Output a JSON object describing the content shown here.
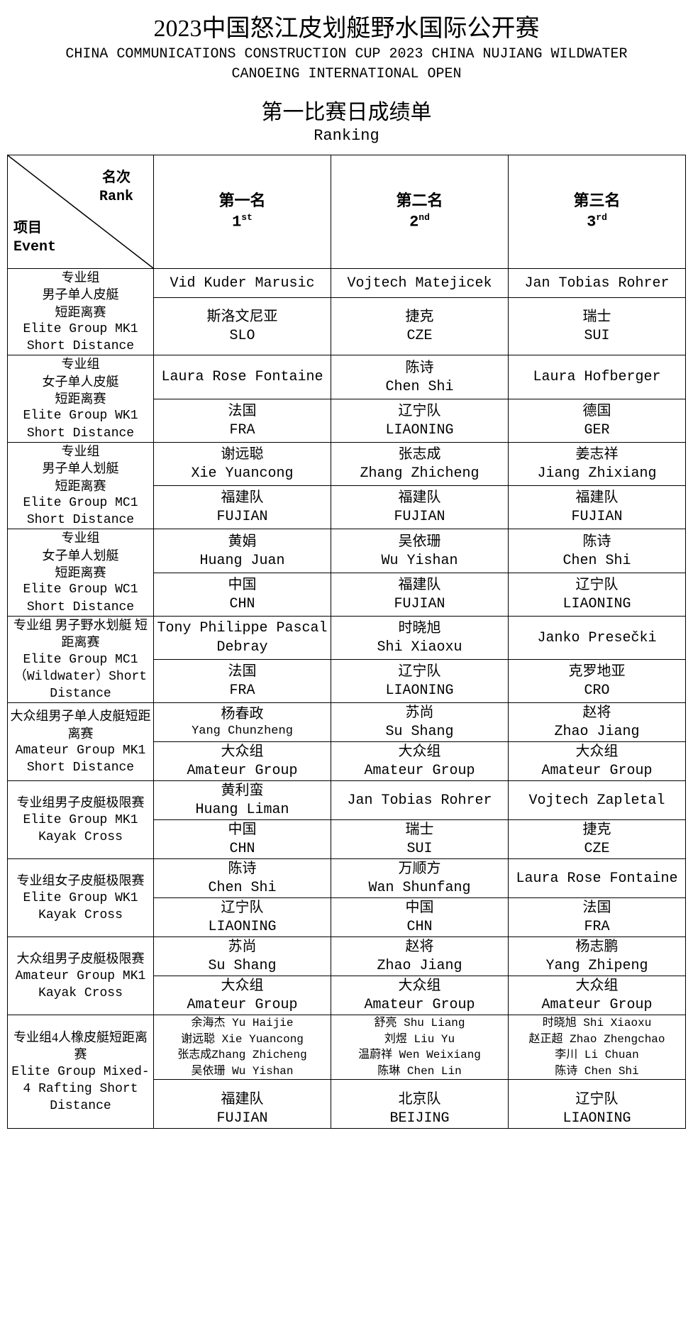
{
  "header": {
    "title_cn": "2023中国怒江皮划艇野水国际公开赛",
    "title_en_line1": "CHINA COMMUNICATIONS CONSTRUCTION CUP 2023 CHINA NUJIANG WILDWATER",
    "title_en_line2": "CANOEING INTERNATIONAL OPEN",
    "subtitle_cn": "第一比赛日成绩单",
    "subtitle_en": "Ranking"
  },
  "corner": {
    "rank_cn": "名次",
    "rank_en": "Rank",
    "event_cn": "项目",
    "event_en": "Event"
  },
  "columns": [
    {
      "cn": "第一名",
      "en_pre": "1",
      "en_suf": "st"
    },
    {
      "cn": "第二名",
      "en_pre": "2",
      "en_suf": "nd"
    },
    {
      "cn": "第三名",
      "en_pre": "3",
      "en_suf": "rd"
    }
  ],
  "rows": [
    {
      "event_cn": "专业组\n男子单人皮艇\n短距离赛",
      "event_en": "Elite Group MK1 Short Distance",
      "places": [
        {
          "name_cn": "",
          "name_en": "Vid  Kuder Marusic",
          "country_cn": "斯洛文尼亚",
          "country_en": "SLO"
        },
        {
          "name_cn": "",
          "name_en": "Vojtech Matejicek",
          "country_cn": "捷克",
          "country_en": "CZE"
        },
        {
          "name_cn": "",
          "name_en": "Jan Tobias Rohrer",
          "country_cn": "瑞士",
          "country_en": "SUI"
        }
      ]
    },
    {
      "event_cn": "专业组\n女子单人皮艇\n短距离赛",
      "event_en": "Elite Group WK1 Short Distance",
      "places": [
        {
          "name_cn": "",
          "name_en": "Laura Rose Fontaine",
          "country_cn": "法国",
          "country_en": "FRA"
        },
        {
          "name_cn": "陈诗",
          "name_en": "Chen Shi",
          "country_cn": "辽宁队",
          "country_en": "LIAONING"
        },
        {
          "name_cn": "",
          "name_en": "Laura Hofberger",
          "country_cn": "德国",
          "country_en": "GER"
        }
      ]
    },
    {
      "event_cn": "专业组\n男子单人划艇\n短距离赛",
      "event_en": "Elite Group MC1 Short Distance",
      "places": [
        {
          "name_cn": "谢远聪",
          "name_en": "Xie Yuancong",
          "country_cn": "福建队",
          "country_en": "FUJIAN"
        },
        {
          "name_cn": "张志成",
          "name_en": "Zhang Zhicheng",
          "country_cn": "福建队",
          "country_en": "FUJIAN"
        },
        {
          "name_cn": "姜志祥",
          "name_en": "Jiang Zhixiang",
          "country_cn": "福建队",
          "country_en": "FUJIAN"
        }
      ]
    },
    {
      "event_cn": "专业组\n女子单人划艇\n短距离赛",
      "event_en": "Elite Group WC1 Short Distance",
      "places": [
        {
          "name_cn": "黄娟",
          "name_en": "Huang Juan",
          "country_cn": "中国",
          "country_en": "CHN"
        },
        {
          "name_cn": "吴依珊",
          "name_en": "Wu Yishan",
          "country_cn": "福建队",
          "country_en": "FUJIAN"
        },
        {
          "name_cn": "陈诗",
          "name_en": "Chen Shi",
          "country_cn": "辽宁队",
          "country_en": "LIAONING"
        }
      ]
    },
    {
      "event_cn": "专业组 男子野水划艇 短距离赛",
      "event_en": "Elite Group MC1（Wildwater）Short Distance",
      "places": [
        {
          "name_cn": "",
          "name_en": "Tony Philippe Pascal Debray",
          "country_cn": "法国",
          "country_en": "FRA"
        },
        {
          "name_cn": "时晓旭",
          "name_en": "Shi Xiaoxu",
          "country_cn": "辽宁队",
          "country_en": "LIAONING"
        },
        {
          "name_cn": "",
          "name_en": "Janko Presečki",
          "country_cn": "克罗地亚",
          "country_en": "CRO"
        }
      ]
    },
    {
      "event_cn": "大众组男子单人皮艇短距离赛",
      "event_en": "Amateur Group MK1 Short Distance",
      "places": [
        {
          "name_cn": "杨春政",
          "name_en": "Yang Chunzheng",
          "country_cn": "大众组",
          "country_en": "Amateur Group",
          "small": true
        },
        {
          "name_cn": "苏尚",
          "name_en": "Su Shang",
          "country_cn": "大众组",
          "country_en": "Amateur Group"
        },
        {
          "name_cn": "赵将",
          "name_en": "Zhao Jiang",
          "country_cn": "大众组",
          "country_en": "Amateur Group"
        }
      ]
    },
    {
      "event_cn": "专业组男子皮艇极限赛",
      "event_en": "Elite Group MK1 Kayak Cross",
      "places": [
        {
          "name_cn": "黄利蛮",
          "name_en": "Huang Liman",
          "country_cn": "中国",
          "country_en": "CHN"
        },
        {
          "name_cn": "",
          "name_en": "Jan Tobias Rohrer",
          "country_cn": "瑞士",
          "country_en": "SUI"
        },
        {
          "name_cn": "",
          "name_en": "Vojtech Zapletal",
          "country_cn": "捷克",
          "country_en": "CZE"
        }
      ]
    },
    {
      "event_cn": "专业组女子皮艇极限赛",
      "event_en": "Elite Group WK1 Kayak Cross",
      "places": [
        {
          "name_cn": "陈诗",
          "name_en": "Chen Shi",
          "country_cn": "辽宁队",
          "country_en": "LIAONING"
        },
        {
          "name_cn": "万顺方",
          "name_en": "Wan Shunfang",
          "country_cn": "中国",
          "country_en": "CHN"
        },
        {
          "name_cn": "",
          "name_en": "Laura Rose Fontaine",
          "country_cn": "法国",
          "country_en": "FRA"
        }
      ]
    },
    {
      "event_cn": "大众组男子皮艇极限赛",
      "event_en": "Amateur Group MK1 Kayak Cross",
      "places": [
        {
          "name_cn": "苏尚",
          "name_en": "Su Shang",
          "country_cn": "大众组",
          "country_en": "Amateur Group"
        },
        {
          "name_cn": "赵将",
          "name_en": "Zhao Jiang",
          "country_cn": "大众组",
          "country_en": "Amateur Group"
        },
        {
          "name_cn": "杨志鹏",
          "name_en": "Yang Zhipeng",
          "country_cn": "大众组",
          "country_en": "Amateur Group"
        }
      ]
    },
    {
      "event_cn": "专业组4人橡皮艇短距离赛",
      "event_en": "Elite Group Mixed-4 Rafting Short Distance",
      "team": true,
      "places": [
        {
          "members": [
            "余海杰 Yu Haijie",
            "谢远聪 Xie Yuancong",
            "张志成Zhang Zhicheng",
            "吴依珊 Wu Yishan"
          ],
          "country_cn": "福建队",
          "country_en": "FUJIAN"
        },
        {
          "members": [
            "舒亮 Shu Liang",
            "刘煜 Liu Yu",
            "温蔚祥 Wen Weixiang",
            "陈琳 Chen Lin"
          ],
          "country_cn": "北京队",
          "country_en": "BEIJING"
        },
        {
          "members": [
            "时晓旭 Shi Xiaoxu",
            "赵正超 Zhao Zhengchao",
            "李川 Li Chuan",
            "陈诗 Chen Shi"
          ],
          "country_cn": "辽宁队",
          "country_en": "LIAONING"
        }
      ]
    }
  ]
}
